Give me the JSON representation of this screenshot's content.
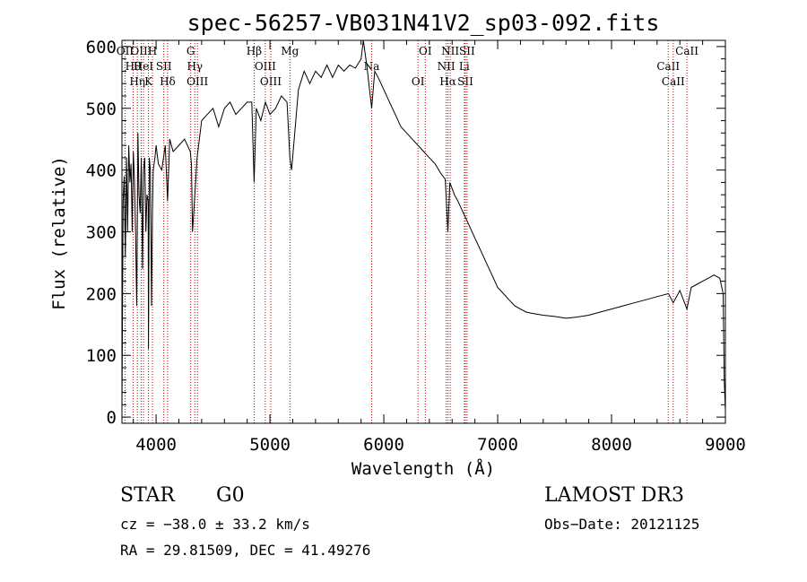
{
  "chart_data": {
    "type": "line",
    "title": "spec-56257-VB031N41V2_sp03-092.fits",
    "xlabel": "Wavelength (Å)",
    "ylabel": "Flux (relative)",
    "xlim": [
      3700,
      9000
    ],
    "ylim": [
      -10,
      610
    ],
    "x_ticks": [
      4000,
      5000,
      6000,
      7000,
      8000,
      9000
    ],
    "y_ticks": [
      0,
      100,
      200,
      300,
      400,
      500,
      600
    ],
    "grid": false,
    "series": [
      {
        "name": "spectrum",
        "x": [
          3700,
          3710,
          3720,
          3730,
          3740,
          3750,
          3760,
          3770,
          3780,
          3790,
          3800,
          3810,
          3820,
          3830,
          3840,
          3850,
          3860,
          3870,
          3880,
          3890,
          3900,
          3910,
          3920,
          3930,
          3933,
          3940,
          3950,
          3960,
          3968,
          3975,
          3990,
          4000,
          4020,
          4050,
          4080,
          4101,
          4120,
          4150,
          4200,
          4250,
          4300,
          4310,
          4320,
          4340,
          4360,
          4400,
          4450,
          4500,
          4550,
          4600,
          4650,
          4700,
          4750,
          4800,
          4840,
          4861,
          4880,
          4920,
          4960,
          5000,
          5050,
          5100,
          5150,
          5175,
          5190,
          5250,
          5300,
          5350,
          5400,
          5450,
          5500,
          5550,
          5600,
          5650,
          5700,
          5750,
          5800,
          5820,
          5850,
          5893,
          5920,
          5950,
          6000,
          6050,
          6100,
          6150,
          6200,
          6250,
          6300,
          6350,
          6400,
          6450,
          6500,
          6540,
          6563,
          6580,
          6620,
          6650,
          6700,
          6750,
          6800,
          6850,
          6900,
          6950,
          7000,
          7050,
          7100,
          7150,
          7200,
          7250,
          7300,
          7400,
          7500,
          7600,
          7700,
          7800,
          7900,
          8000,
          8100,
          8200,
          8300,
          8400,
          8500,
          8542,
          8600,
          8662,
          8700,
          8750,
          8800,
          8850,
          8900,
          8950,
          8980,
          8990,
          9000
        ],
        "values": [
          10,
          350,
          390,
          260,
          420,
          300,
          440,
          380,
          410,
          300,
          430,
          380,
          300,
          180,
          460,
          360,
          330,
          420,
          240,
          400,
          420,
          300,
          360,
          350,
          110,
          420,
          400,
          180,
          330,
          400,
          420,
          440,
          410,
          400,
          440,
          350,
          450,
          430,
          440,
          450,
          430,
          410,
          300,
          360,
          420,
          480,
          490,
          500,
          470,
          500,
          510,
          490,
          500,
          510,
          510,
          380,
          500,
          480,
          510,
          490,
          500,
          520,
          510,
          420,
          400,
          530,
          560,
          540,
          560,
          550,
          570,
          550,
          570,
          560,
          570,
          565,
          580,
          620,
          570,
          500,
          560,
          550,
          530,
          510,
          490,
          470,
          460,
          450,
          440,
          430,
          420,
          410,
          395,
          385,
          300,
          380,
          360,
          350,
          330,
          310,
          290,
          270,
          250,
          230,
          210,
          200,
          190,
          180,
          175,
          170,
          168,
          165,
          163,
          160,
          162,
          165,
          170,
          175,
          180,
          185,
          190,
          195,
          200,
          185,
          205,
          175,
          210,
          215,
          220,
          225,
          230,
          225,
          200,
          60,
          10
        ]
      }
    ],
    "line_markers": [
      {
        "wl": 3727,
        "label": "OII"
      },
      {
        "wl": 3798,
        "label": "Hθ"
      },
      {
        "wl": 3835,
        "label": "Hη"
      },
      {
        "wl": 3869,
        "label": "OIII"
      },
      {
        "wl": 3889,
        "label": "HeI"
      },
      {
        "wl": 3933,
        "label": "K"
      },
      {
        "wl": 3968,
        "label": "H"
      },
      {
        "wl": 4068,
        "label": "SII"
      },
      {
        "wl": 4101,
        "label": "Hδ"
      },
      {
        "wl": 4304,
        "label": "G"
      },
      {
        "wl": 4340,
        "label": "Hγ"
      },
      {
        "wl": 4363,
        "label": "OIII"
      },
      {
        "wl": 4861,
        "label": "Hβ"
      },
      {
        "wl": 4959,
        "label": "OIII"
      },
      {
        "wl": 5007,
        "label": "OIII"
      },
      {
        "wl": 5175,
        "label": "Mg"
      },
      {
        "wl": 5893,
        "label": "Na"
      },
      {
        "wl": 6300,
        "label": "OI"
      },
      {
        "wl": 6364,
        "label": "OI"
      },
      {
        "wl": 6548,
        "label": "NII"
      },
      {
        "wl": 6563,
        "label": "Hα"
      },
      {
        "wl": 6583,
        "label": "NII"
      },
      {
        "wl": 6707,
        "label": "Li"
      },
      {
        "wl": 6716,
        "label": "SII"
      },
      {
        "wl": 6731,
        "label": "SII"
      },
      {
        "wl": 8498,
        "label": "CaII"
      },
      {
        "wl": 8542,
        "label": "CaII"
      },
      {
        "wl": 8662,
        "label": "CaII"
      }
    ]
  },
  "info": {
    "class": "STAR",
    "subclass": "G0",
    "survey": "LAMOST DR3",
    "redshift": "cz = −38.0 ± 33.2 km/s",
    "obs_date": "Obs−Date: 20121125",
    "coords": "RA =  29.81509, DEC =  41.49276"
  }
}
